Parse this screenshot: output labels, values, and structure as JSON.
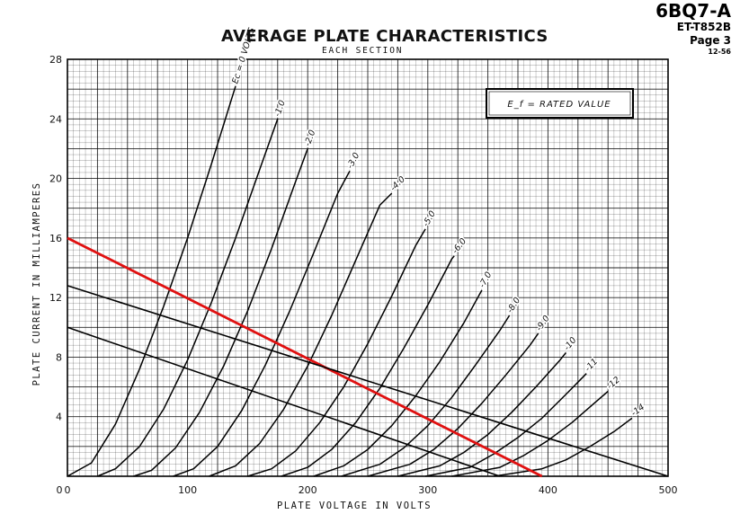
{
  "header": {
    "tube": "6BQ7-A",
    "doc_no": "ET-T852B",
    "page": "Page 3",
    "date": "12-56"
  },
  "chart_data": {
    "type": "line",
    "title": "AVERAGE PLATE CHARACTERISTICS",
    "subtitle": "EACH SECTION",
    "xlabel": "PLATE VOLTAGE IN VOLTS",
    "ylabel": "PLATE CURRENT IN MILLIAMPERES",
    "xlim": [
      0,
      500
    ],
    "ylim": [
      0,
      28
    ],
    "xticks": [
      0,
      100,
      200,
      300,
      400,
      500
    ],
    "yticks": [
      4,
      8,
      12,
      16,
      20,
      24,
      28
    ],
    "grid": true,
    "legend_box": "E_f = RATED VALUE",
    "curve_label_prefix": "Ec = ",
    "curve_label_suffix": " VOLTS",
    "series": [
      {
        "name": "0",
        "x": [
          0,
          20,
          40,
          60,
          80,
          100,
          120,
          140
        ],
        "y": [
          0,
          0.9,
          3.5,
          7.2,
          11.4,
          16.0,
          21.0,
          26.2
        ]
      },
      {
        "name": "-1.0",
        "x": [
          25,
          40,
          60,
          80,
          100,
          120,
          140,
          160,
          175
        ],
        "y": [
          0,
          0.5,
          2.0,
          4.5,
          7.8,
          11.7,
          16.0,
          20.6,
          24.0
        ]
      },
      {
        "name": "-2.0",
        "x": [
          55,
          70,
          90,
          110,
          130,
          150,
          170,
          190,
          200
        ],
        "y": [
          0,
          0.4,
          1.9,
          4.3,
          7.4,
          11.1,
          15.3,
          19.8,
          22.0
        ]
      },
      {
        "name": "-3.0",
        "x": [
          88,
          105,
          125,
          145,
          165,
          185,
          205,
          225,
          235
        ],
        "y": [
          0,
          0.5,
          2.0,
          4.4,
          7.5,
          11.1,
          15.0,
          19.0,
          20.5
        ]
      },
      {
        "name": "-4.0",
        "x": [
          118,
          140,
          160,
          180,
          200,
          220,
          240,
          260,
          270
        ],
        "y": [
          0,
          0.7,
          2.2,
          4.5,
          7.4,
          10.8,
          14.5,
          18.2,
          19.0
        ]
      },
      {
        "name": "-5.0",
        "x": [
          150,
          170,
          190,
          210,
          230,
          250,
          270,
          290,
          298
        ],
        "y": [
          0,
          0.5,
          1.7,
          3.6,
          6.0,
          8.9,
          12.1,
          15.5,
          16.6
        ]
      },
      {
        "name": "-6.0",
        "x": [
          178,
          200,
          220,
          240,
          260,
          280,
          300,
          320,
          322
        ],
        "y": [
          0,
          0.6,
          1.8,
          3.6,
          5.9,
          8.6,
          11.5,
          14.6,
          14.8
        ]
      },
      {
        "name": "-7.0",
        "x": [
          205,
          230,
          250,
          270,
          290,
          310,
          330,
          345
        ],
        "y": [
          0,
          0.7,
          1.8,
          3.4,
          5.4,
          7.7,
          10.3,
          12.5
        ]
      },
      {
        "name": "-8.0",
        "x": [
          228,
          260,
          280,
          300,
          320,
          340,
          360,
          368
        ],
        "y": [
          0,
          0.8,
          1.9,
          3.4,
          5.3,
          7.5,
          9.8,
          10.8
        ]
      },
      {
        "name": "-9.0",
        "x": [
          250,
          285,
          305,
          325,
          345,
          365,
          385,
          392
        ],
        "y": [
          0,
          0.8,
          1.8,
          3.2,
          4.9,
          6.8,
          8.8,
          9.6
        ]
      },
      {
        "name": "-10",
        "x": [
          275,
          310,
          330,
          350,
          370,
          390,
          410,
          415
        ],
        "y": [
          0,
          0.7,
          1.6,
          2.8,
          4.3,
          6.0,
          7.8,
          8.3
        ]
      },
      {
        "name": "-11",
        "x": [
          298,
          335,
          355,
          375,
          395,
          415,
          432
        ],
        "y": [
          0,
          0.6,
          1.5,
          2.6,
          3.9,
          5.5,
          6.9
        ]
      },
      {
        "name": "-12",
        "x": [
          320,
          360,
          380,
          400,
          420,
          440,
          450
        ],
        "y": [
          0,
          0.6,
          1.4,
          2.4,
          3.6,
          5.0,
          5.7
        ]
      },
      {
        "name": "-14",
        "x": [
          355,
          395,
          415,
          435,
          455,
          470
        ],
        "y": [
          0,
          0.5,
          1.1,
          2.0,
          3.0,
          3.9
        ]
      }
    ],
    "load_lines": [
      {
        "color": "#e01010",
        "x": [
          0,
          395
        ],
        "y": [
          16.0,
          0
        ]
      },
      {
        "color": "#000000",
        "x": [
          0,
          500
        ],
        "y": [
          12.8,
          0
        ]
      },
      {
        "color": "#000000",
        "x": [
          0,
          360
        ],
        "y": [
          10.0,
          0
        ]
      }
    ],
    "colors": {
      "curves": "#000000",
      "grid": "#000000",
      "load_line_highlight": "#e01010"
    }
  }
}
